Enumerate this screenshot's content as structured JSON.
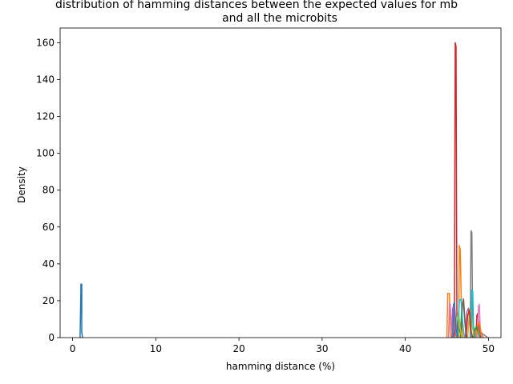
{
  "chart_data": {
    "type": "line",
    "title_lines": [
      "distribution of hamming distances between the expected values for mb",
      "and all the microbits"
    ],
    "xlabel": "hamming distance (%)",
    "ylabel": "Density",
    "xlim": [
      -1.5,
      51.5
    ],
    "ylim": [
      0,
      168
    ],
    "xticks": [
      0,
      10,
      20,
      30,
      40,
      50
    ],
    "yticks": [
      0,
      20,
      40,
      60,
      80,
      100,
      120,
      140,
      160
    ],
    "grid": false,
    "legend": "none",
    "series": [
      {
        "color": "#1f77b4",
        "x": [
          0.9,
          1.0,
          1.0,
          1.1,
          1.1,
          1.2
        ],
        "values": [
          0,
          26,
          29,
          29,
          3,
          0
        ]
      },
      {
        "color": "#ff7f0e",
        "x": [
          45.0,
          45.1,
          45.3,
          45.4,
          45.5
        ],
        "values": [
          0,
          24,
          24,
          3,
          0
        ]
      },
      {
        "color": "#ff7f0e",
        "x": [
          46.4,
          46.5,
          46.6,
          46.8,
          46.9
        ],
        "values": [
          0,
          50,
          48,
          5,
          0
        ]
      },
      {
        "color": "#2ca02c",
        "x": [
          45.8,
          46.0,
          46.2,
          46.5,
          46.8
        ],
        "values": [
          0,
          7,
          10,
          4,
          0
        ]
      },
      {
        "color": "#2ca02c",
        "x": [
          46.6,
          46.8,
          47.0,
          47.2,
          47.4
        ],
        "values": [
          0,
          17,
          19,
          6,
          0
        ]
      },
      {
        "color": "#d62728",
        "x": [
          45.9,
          46.0,
          46.1,
          46.2,
          46.3
        ],
        "values": [
          0,
          160,
          158,
          10,
          0
        ]
      },
      {
        "color": "#d62728",
        "x": [
          48.5,
          48.6,
          48.7,
          48.9,
          49.1
        ],
        "values": [
          0,
          12,
          13,
          4,
          0
        ]
      },
      {
        "color": "#9467bd",
        "x": [
          47.2,
          47.4,
          47.6,
          47.8,
          48.0
        ],
        "values": [
          0,
          14,
          16,
          5,
          0
        ]
      },
      {
        "color": "#8c564b",
        "x": [
          46.7,
          46.9,
          47.0,
          47.2,
          47.4
        ],
        "values": [
          0,
          19,
          21,
          7,
          0
        ]
      },
      {
        "color": "#e377c2",
        "x": [
          45.2,
          45.3,
          45.4,
          45.6,
          45.8
        ],
        "values": [
          0,
          19,
          18,
          4,
          0
        ]
      },
      {
        "color": "#e377c2",
        "x": [
          48.7,
          48.8,
          48.9,
          49.0,
          49.2
        ],
        "values": [
          0,
          17,
          18,
          5,
          0
        ]
      },
      {
        "color": "#7f7f7f",
        "x": [
          47.8,
          47.9,
          48.0,
          48.1,
          48.3
        ],
        "values": [
          0,
          58,
          57,
          8,
          0
        ]
      },
      {
        "color": "#7f7f7f",
        "x": [
          48.9,
          49.1,
          49.3,
          49.6,
          49.9
        ],
        "values": [
          0,
          3,
          2,
          1,
          0
        ]
      },
      {
        "color": "#bcbd22",
        "x": [
          46.0,
          46.2,
          46.4,
          46.6,
          46.8
        ],
        "values": [
          0,
          10,
          14,
          5,
          0
        ]
      },
      {
        "color": "#bcbd22",
        "x": [
          47.5,
          47.7,
          47.9,
          48.1,
          48.3
        ],
        "values": [
          0,
          14,
          15,
          5,
          0
        ]
      },
      {
        "color": "#17becf",
        "x": [
          47.9,
          48.0,
          48.1,
          48.2,
          48.4
        ],
        "values": [
          0,
          26,
          25,
          6,
          0
        ]
      },
      {
        "color": "#17becf",
        "x": [
          46.3,
          46.5,
          46.7,
          46.9,
          47.1
        ],
        "values": [
          0,
          20,
          21,
          8,
          0
        ]
      },
      {
        "color": "#1f77b4",
        "x": [
          45.7,
          45.8,
          45.9,
          46.1,
          46.3
        ],
        "values": [
          0,
          18,
          19,
          5,
          0
        ]
      },
      {
        "color": "#ff7f0e",
        "x": [
          48.5,
          48.7,
          48.9,
          49.1,
          49.4
        ],
        "values": [
          0,
          7,
          8,
          3,
          0
        ]
      },
      {
        "color": "#2ca02c",
        "x": [
          48.2,
          48.4,
          48.6,
          48.8,
          49.0
        ],
        "values": [
          0,
          5,
          6,
          2,
          0
        ]
      },
      {
        "color": "#d62728",
        "x": [
          47.3,
          47.5,
          47.7,
          47.9,
          48.1
        ],
        "values": [
          0,
          12,
          15,
          4,
          0
        ]
      },
      {
        "color": "#9467bd",
        "x": [
          45.6,
          45.7,
          45.8,
          46.0,
          46.2
        ],
        "values": [
          0,
          16,
          17,
          3,
          0
        ]
      }
    ]
  }
}
